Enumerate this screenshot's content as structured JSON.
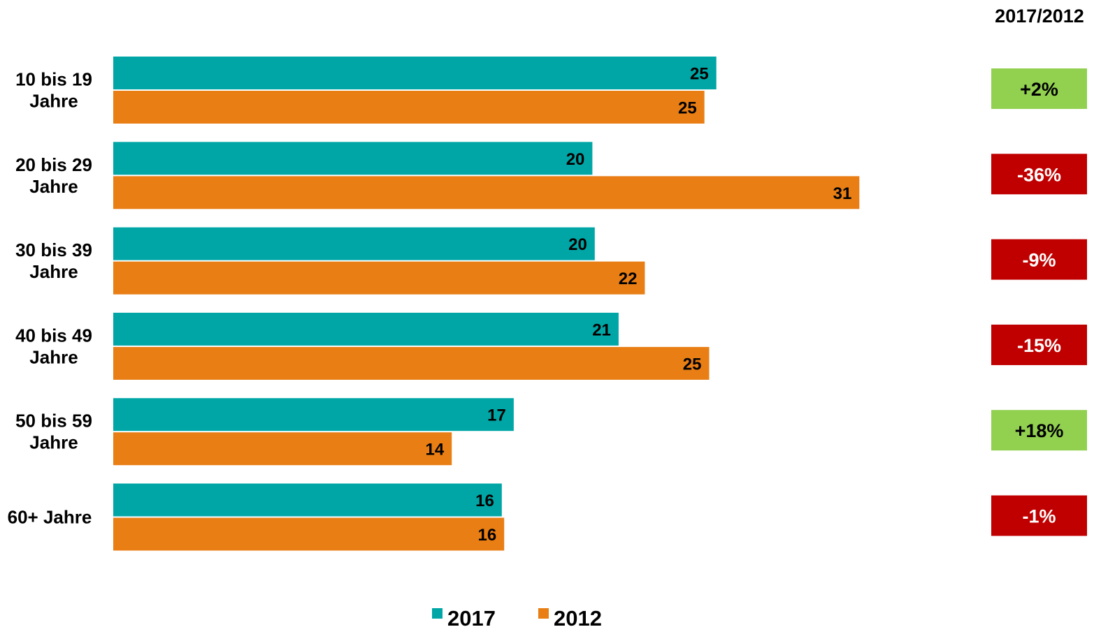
{
  "chart_data": {
    "type": "bar",
    "orientation": "horizontal",
    "categories": [
      [
        "10 bis 19",
        "Jahre"
      ],
      [
        "20 bis 29",
        "Jahre"
      ],
      [
        "30 bis 39",
        "Jahre"
      ],
      [
        "40 bis 49",
        "Jahre"
      ],
      [
        "50 bis 59",
        "Jahre"
      ],
      [
        "60+ Jahre"
      ]
    ],
    "series": [
      {
        "name": "2017",
        "color": "#00A6A6",
        "values": [
          25.3,
          20.1,
          20.2,
          21.2,
          16.8,
          16.3
        ],
        "labels": [
          "25",
          "20",
          "20",
          "21",
          "17",
          "16"
        ]
      },
      {
        "name": "2012",
        "color": "#E87E14",
        "values": [
          24.8,
          31.3,
          22.3,
          25.0,
          14.2,
          16.4
        ],
        "labels": [
          "25",
          "31",
          "22",
          "25",
          "14",
          "16"
        ]
      }
    ],
    "change_header": "2017/2012",
    "changes": [
      {
        "label": "+2%",
        "color": "#92D050",
        "text_color": "#000000"
      },
      {
        "label": "-36%",
        "color": "#C00000",
        "text_color": "#ffffff"
      },
      {
        "label": "-9%",
        "color": "#C00000",
        "text_color": "#ffffff"
      },
      {
        "label": "-15%",
        "color": "#C00000",
        "text_color": "#ffffff"
      },
      {
        "label": "+18%",
        "color": "#92D050",
        "text_color": "#000000"
      },
      {
        "label": "-1%",
        "color": "#C00000",
        "text_color": "#ffffff"
      }
    ],
    "legend_position": "bottom-center",
    "grid": false,
    "xlim": [
      0,
      35
    ]
  }
}
